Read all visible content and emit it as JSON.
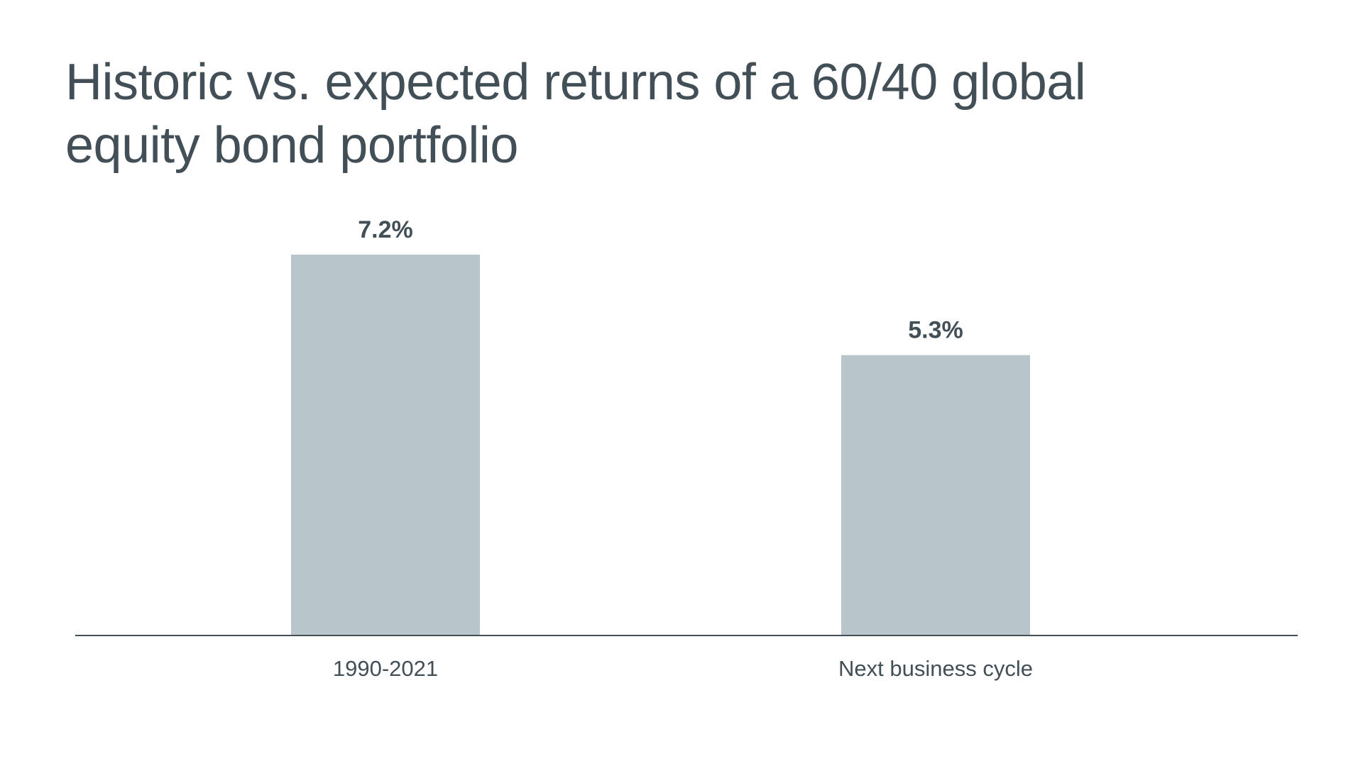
{
  "chart_data": {
    "type": "bar",
    "title": "Historic vs. expected returns of a 60/40 global equity bond portfolio",
    "categories": [
      "1990-2021",
      "Next business cycle"
    ],
    "values": [
      7.2,
      5.3
    ],
    "value_labels": [
      "7.2%",
      "5.3%"
    ],
    "ylim": [
      0,
      7.2
    ],
    "grid": false,
    "legend": "none",
    "colors": {
      "bar": "#b8c5cb",
      "axis": "#434f57",
      "text": "#434f57"
    }
  }
}
